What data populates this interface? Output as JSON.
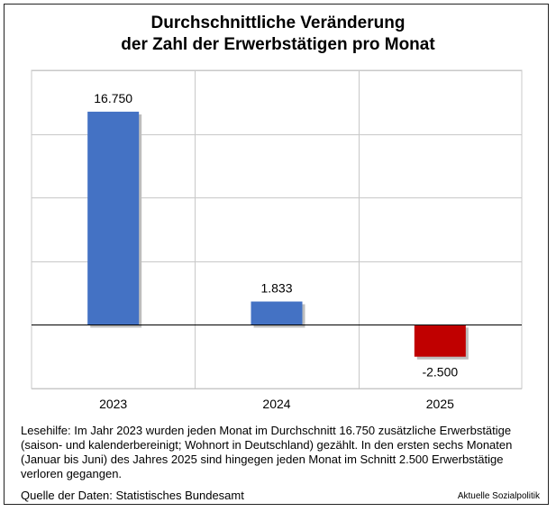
{
  "title_line1": "Durchschnittliche Veränderung",
  "title_line2": "der Zahl der Erwerbstätigen pro Monat",
  "chart_data": {
    "type": "bar",
    "categories": [
      "2023",
      "2024",
      "2025"
    ],
    "values": [
      16750,
      1833,
      -2500
    ],
    "value_labels": [
      "16.750",
      "1.833",
      "-2.500"
    ],
    "ylim": [
      -5000,
      20000
    ],
    "grid": true,
    "colors": [
      "#4472C4",
      "#4472C4",
      "#C00000"
    ],
    "xlabel": "",
    "ylabel": ""
  },
  "note": "Lesehilfe: Im Jahr 2023 wurden jeden Monat im Durchschnitt 16.750 zusätzliche Erwerbstätige (saison- und kalenderbereinigt; Wohnort in Deutschland) gezählt. In den ersten sechs Monaten (Januar bis Juni) des Jahres 2025 sind hingegen jeden Monat im Schnitt 2.500 Erwerbstätige verloren gegangen.",
  "source": "Quelle der Daten: Statistisches Bundesamt",
  "credit": "Aktuelle Sozialpolitik"
}
